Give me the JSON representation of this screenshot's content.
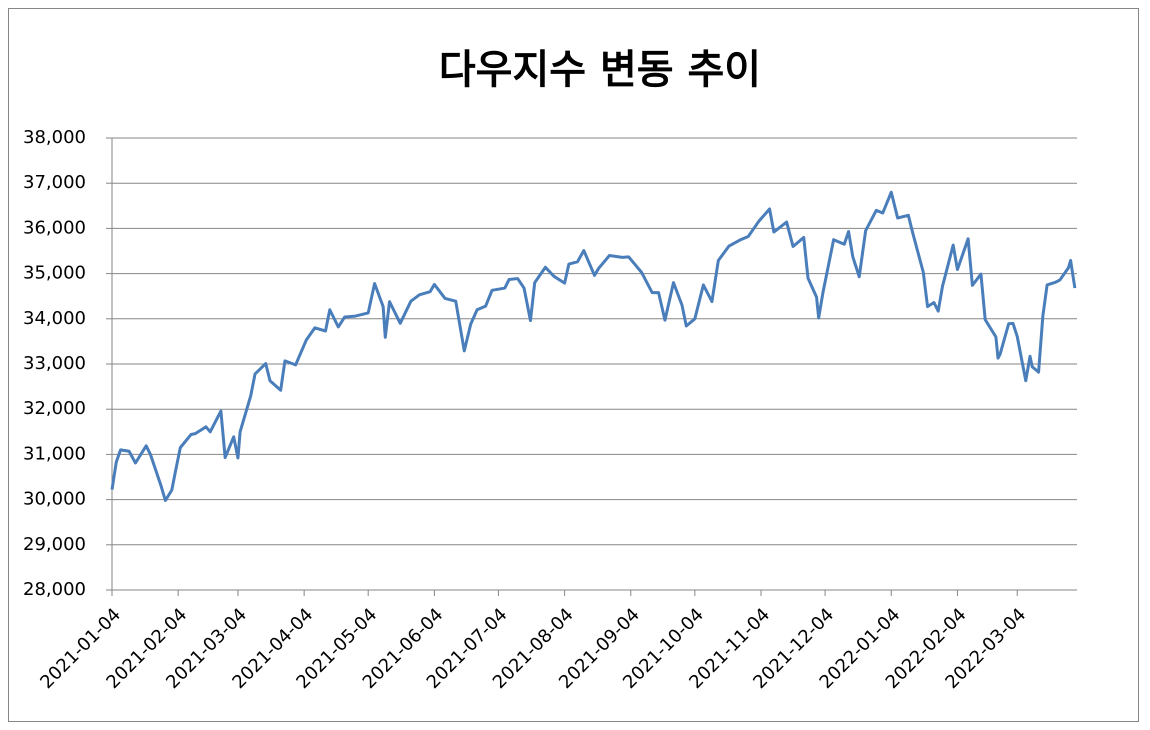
{
  "chart_data": {
    "type": "line",
    "title": "다우지수 변동 추이",
    "x": [
      "2021-01-04",
      "2021-01-06",
      "2021-01-08",
      "2021-01-12",
      "2021-01-15",
      "2021-01-20",
      "2021-01-22",
      "2021-01-27",
      "2021-01-29",
      "2021-02-01",
      "2021-02-03",
      "2021-02-05",
      "2021-02-10",
      "2021-02-12",
      "2021-02-17",
      "2021-02-19",
      "2021-02-24",
      "2021-02-26",
      "2021-03-02",
      "2021-03-04",
      "2021-03-05",
      "2021-03-10",
      "2021-03-12",
      "2021-03-17",
      "2021-03-19",
      "2021-03-24",
      "2021-03-26",
      "2021-03-31",
      "2021-04-05",
      "2021-04-09",
      "2021-04-14",
      "2021-04-16",
      "2021-04-20",
      "2021-04-23",
      "2021-04-28",
      "2021-05-04",
      "2021-05-07",
      "2021-05-11",
      "2021-05-12",
      "2021-05-14",
      "2021-05-19",
      "2021-05-24",
      "2021-05-28",
      "2021-06-02",
      "2021-06-04",
      "2021-06-09",
      "2021-06-14",
      "2021-06-18",
      "2021-06-21",
      "2021-06-24",
      "2021-06-28",
      "2021-07-01",
      "2021-07-07",
      "2021-07-09",
      "2021-07-13",
      "2021-07-16",
      "2021-07-19",
      "2021-07-21",
      "2021-07-26",
      "2021-07-30",
      "2021-08-04",
      "2021-08-06",
      "2021-08-10",
      "2021-08-13",
      "2021-08-18",
      "2021-08-20",
      "2021-08-25",
      "2021-08-31",
      "2021-09-03",
      "2021-09-09",
      "2021-09-14",
      "2021-09-17",
      "2021-09-20",
      "2021-09-24",
      "2021-09-28",
      "2021-09-30",
      "2021-10-04",
      "2021-10-08",
      "2021-10-12",
      "2021-10-15",
      "2021-10-20",
      "2021-10-25",
      "2021-10-29",
      "2021-11-03",
      "2021-11-08",
      "2021-11-10",
      "2021-11-16",
      "2021-11-19",
      "2021-11-24",
      "2021-11-26",
      "2021-11-30",
      "2021-12-01",
      "2021-12-03",
      "2021-12-08",
      "2021-12-13",
      "2021-12-15",
      "2021-12-17",
      "2021-12-20",
      "2021-12-23",
      "2021-12-28",
      "2021-12-31",
      "2022-01-04",
      "2022-01-07",
      "2022-01-12",
      "2022-01-14",
      "2022-01-19",
      "2022-01-21",
      "2022-01-24",
      "2022-01-26",
      "2022-01-28",
      "2022-02-02",
      "2022-02-04",
      "2022-02-09",
      "2022-02-11",
      "2022-02-15",
      "2022-02-17",
      "2022-02-22",
      "2022-02-23",
      "2022-02-24",
      "2022-02-28",
      "2022-03-02",
      "2022-03-04",
      "2022-03-08",
      "2022-03-10",
      "2022-03-11",
      "2022-03-14",
      "2022-03-16",
      "2022-03-18",
      "2022-03-22",
      "2022-03-24",
      "2022-03-28",
      "2022-03-29",
      "2022-03-31"
    ],
    "series": [
      {
        "color": "#4a7ebb",
        "values": [
          30220,
          30830,
          31100,
          31070,
          30810,
          31190,
          31000,
          30300,
          29980,
          30210,
          30690,
          31150,
          31440,
          31460,
          31610,
          31500,
          31960,
          30930,
          31390,
          30920,
          31500,
          32300,
          32780,
          33010,
          32630,
          32420,
          33070,
          32980,
          33530,
          33800,
          33730,
          34200,
          33820,
          34040,
          34060,
          34130,
          34780,
          34270,
          33590,
          34380,
          33900,
          34390,
          34530,
          34600,
          34760,
          34450,
          34390,
          33290,
          33880,
          34200,
          34280,
          34630,
          34680,
          34870,
          34890,
          34680,
          33960,
          34800,
          35140,
          34940,
          34790,
          35210,
          35260,
          35510,
          34960,
          35120,
          35400,
          35360,
          35370,
          35030,
          34580,
          34580,
          33970,
          34800,
          34300,
          33840,
          34000,
          34750,
          34380,
          35290,
          35610,
          35740,
          35820,
          36160,
          36430,
          35920,
          36140,
          35600,
          35800,
          34900,
          34480,
          34020,
          34580,
          35750,
          35650,
          35930,
          35370,
          34930,
          35950,
          36400,
          36340,
          36800,
          36230,
          36290,
          35910,
          35030,
          34270,
          34360,
          34170,
          34720,
          35630,
          35090,
          35770,
          34740,
          34990,
          33980,
          33600,
          33130,
          33220,
          33890,
          33900,
          33610,
          32630,
          33170,
          32940,
          32820,
          34060,
          34750,
          34810,
          34860,
          35130,
          35290,
          34680
        ]
      }
    ],
    "xlim": [
      "2021-01-04",
      "2022-04-01"
    ],
    "xticks": [
      "2021-01-04",
      "2021-02-04",
      "2021-03-04",
      "2021-04-04",
      "2021-05-04",
      "2021-06-04",
      "2021-07-04",
      "2021-08-04",
      "2021-09-04",
      "2021-10-04",
      "2021-11-04",
      "2021-12-04",
      "2022-01-04",
      "2022-02-04",
      "2022-03-04"
    ],
    "ylim": [
      28000,
      38000
    ],
    "yticks": [
      {
        "value": 28000,
        "label": "28,000"
      },
      {
        "value": 29000,
        "label": "29,000"
      },
      {
        "value": 30000,
        "label": "30,000"
      },
      {
        "value": 31000,
        "label": "31,000"
      },
      {
        "value": 32000,
        "label": "32,000"
      },
      {
        "value": 33000,
        "label": "33,000"
      },
      {
        "value": 34000,
        "label": "34,000"
      },
      {
        "value": 35000,
        "label": "35,000"
      },
      {
        "value": 36000,
        "label": "36,000"
      },
      {
        "value": 37000,
        "label": "37,000"
      },
      {
        "value": 38000,
        "label": "38,000"
      }
    ],
    "grid": true
  }
}
